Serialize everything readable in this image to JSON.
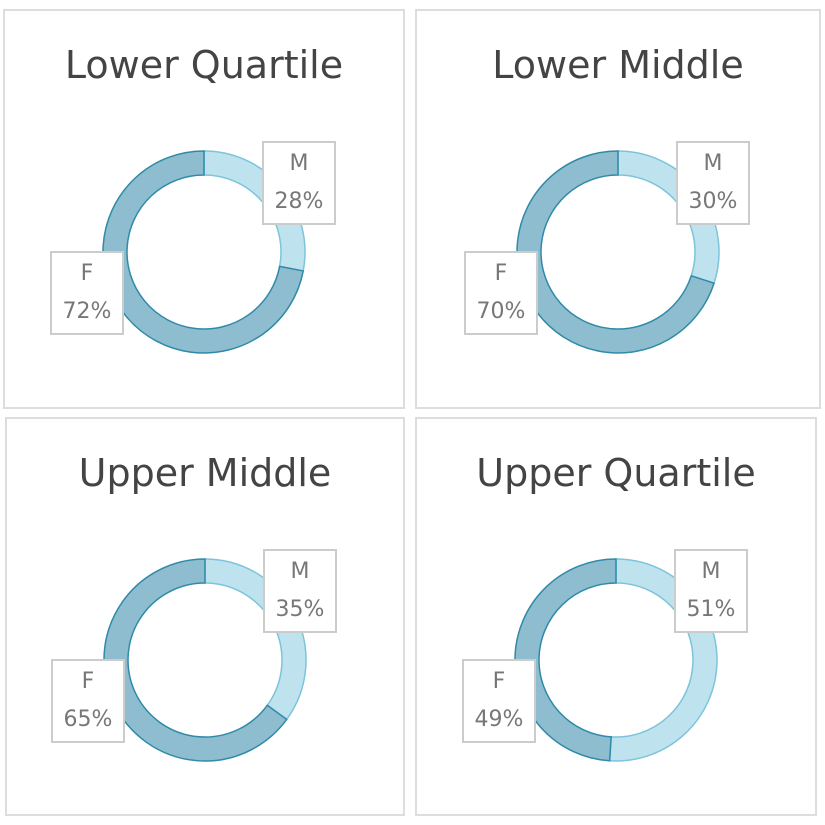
{
  "chart_data": [
    {
      "type": "pie",
      "title": "Lower Quartile",
      "categories": [
        "M",
        "F"
      ],
      "values": [
        28,
        72
      ],
      "value_labels": [
        "28%",
        "72%"
      ],
      "colors": [
        "#bfe3ee",
        "#8fbdd0"
      ]
    },
    {
      "type": "pie",
      "title": "Lower Middle",
      "categories": [
        "M",
        "F"
      ],
      "values": [
        30,
        70
      ],
      "value_labels": [
        "30%",
        "70%"
      ],
      "colors": [
        "#bfe3ee",
        "#8fbdd0"
      ]
    },
    {
      "type": "pie",
      "title": "Upper Middle",
      "categories": [
        "M",
        "F"
      ],
      "values": [
        35,
        65
      ],
      "value_labels": [
        "35%",
        "65%"
      ],
      "colors": [
        "#bfe3ee",
        "#8fbdd0"
      ]
    },
    {
      "type": "pie",
      "title": "Upper Quartile",
      "categories": [
        "M",
        "F"
      ],
      "values": [
        51,
        49
      ],
      "value_labels": [
        "51%",
        "49%"
      ],
      "colors": [
        "#bfe3ee",
        "#8fbdd0"
      ]
    }
  ]
}
